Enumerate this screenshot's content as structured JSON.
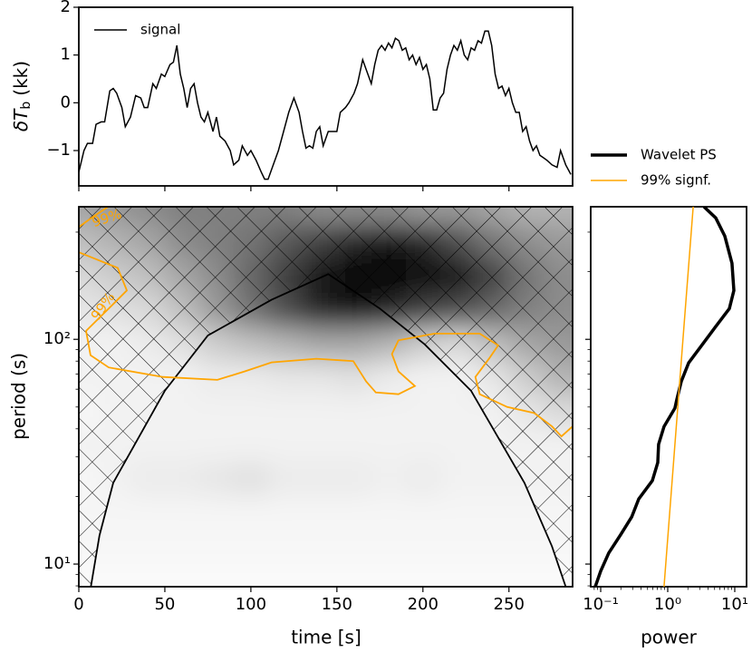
{
  "chart_data": [
    {
      "type": "line",
      "ylabel": {
        "main": "δT",
        "sub": "b",
        "unit": "(kk)"
      },
      "xlim": [
        0,
        287
      ],
      "ylim": [
        -1.74,
        2
      ],
      "xticks": [
        0,
        50,
        100,
        150,
        200,
        250
      ],
      "yticks": [
        {
          "value": -1,
          "label": "−1"
        },
        0,
        1,
        2
      ],
      "series": [
        {
          "name": "signal",
          "color": "#000000",
          "x": [
            0,
            3,
            5,
            8,
            10,
            13,
            15,
            18,
            20,
            22,
            25,
            27,
            30,
            33,
            36,
            38,
            40,
            43,
            45,
            48,
            50,
            53,
            55,
            57,
            59,
            61,
            63,
            65,
            67,
            69,
            71,
            73,
            75,
            78,
            80,
            82,
            85,
            88,
            90,
            93,
            95,
            98,
            100,
            103,
            106,
            108,
            110,
            113,
            116,
            119,
            122,
            125,
            128,
            130,
            132,
            134,
            136,
            138,
            140,
            142,
            145,
            147,
            150,
            152,
            155,
            157,
            160,
            162,
            165,
            167,
            170,
            172,
            174,
            176,
            178,
            180,
            182,
            184,
            186,
            188,
            190,
            192,
            194,
            196,
            198,
            200,
            202,
            204,
            206,
            208,
            210,
            212,
            214,
            216,
            218,
            220,
            222,
            224,
            226,
            228,
            230,
            232,
            234,
            236,
            238,
            240,
            242,
            244,
            246,
            248,
            250,
            252,
            254,
            256,
            258,
            260,
            262,
            264,
            266,
            268,
            270,
            272,
            275,
            278,
            280,
            283,
            286
          ],
          "values": [
            -1.45,
            -1.0,
            -0.85,
            -0.85,
            -0.45,
            -0.4,
            -0.4,
            0.25,
            0.3,
            0.2,
            -0.1,
            -0.5,
            -0.3,
            0.15,
            0.1,
            -0.1,
            -0.1,
            0.4,
            0.3,
            0.6,
            0.55,
            0.8,
            0.85,
            1.2,
            0.6,
            0.3,
            -0.1,
            0.3,
            0.4,
            0.0,
            -0.3,
            -0.4,
            -0.2,
            -0.6,
            -0.3,
            -0.7,
            -0.8,
            -1.0,
            -1.3,
            -1.2,
            -0.9,
            -1.1,
            -1.0,
            -1.2,
            -1.45,
            -1.6,
            -1.6,
            -1.3,
            -1.0,
            -0.6,
            -0.2,
            0.1,
            -0.2,
            -0.6,
            -0.95,
            -0.9,
            -0.95,
            -0.6,
            -0.5,
            -0.9,
            -0.6,
            -0.6,
            -0.6,
            -0.2,
            -0.1,
            0.0,
            0.2,
            0.4,
            0.9,
            0.7,
            0.4,
            0.8,
            1.1,
            1.2,
            1.1,
            1.25,
            1.15,
            1.35,
            1.3,
            1.1,
            1.15,
            0.9,
            1.0,
            0.8,
            0.95,
            0.7,
            0.8,
            0.5,
            -0.15,
            -0.15,
            0.1,
            0.2,
            0.7,
            1.0,
            1.2,
            1.1,
            1.3,
            1.0,
            0.9,
            1.15,
            1.1,
            1.3,
            1.25,
            1.5,
            1.5,
            1.2,
            0.6,
            0.3,
            0.35,
            0.15,
            0.3,
            0.0,
            -0.2,
            -0.2,
            -0.6,
            -0.5,
            -0.8,
            -1.0,
            -0.9,
            -1.1,
            -1.15,
            -1.2,
            -1.3,
            -1.35,
            -1.0,
            -1.3,
            -1.5
          ]
        }
      ]
    },
    {
      "type": "heatmap",
      "xlabel": "time [s]",
      "ylabel": "period (s)",
      "log_y": true,
      "xlim": [
        0,
        287
      ],
      "ylim": [
        7.93,
        389
      ],
      "xticks": [
        0,
        50,
        100,
        150,
        200,
        250
      ],
      "yticks": [
        {
          "value": 10,
          "label": "10¹"
        },
        {
          "value": 100,
          "label": "10²"
        }
      ],
      "yminorticks": [
        8,
        9,
        20,
        30,
        40,
        50,
        60,
        70,
        80,
        90,
        200,
        300
      ],
      "x": [
        0,
        20,
        40,
        60,
        80,
        100,
        120,
        140,
        160,
        180,
        200,
        220,
        240,
        260,
        280
      ],
      "y": [
        8.5,
        12,
        17,
        24,
        34,
        48,
        68,
        96,
        136,
        192,
        272,
        385
      ],
      "values": [
        [
          0.02,
          0.02,
          0.02,
          0.02,
          0.02,
          0.02,
          0.02,
          0.02,
          0.02,
          0.02,
          0.02,
          0.02,
          0.02,
          0.02,
          0.02
        ],
        [
          0.03,
          0.03,
          0.03,
          0.03,
          0.03,
          0.03,
          0.03,
          0.03,
          0.03,
          0.03,
          0.03,
          0.03,
          0.03,
          0.03,
          0.03
        ],
        [
          0.04,
          0.04,
          0.04,
          0.04,
          0.04,
          0.04,
          0.04,
          0.04,
          0.04,
          0.04,
          0.04,
          0.04,
          0.04,
          0.04,
          0.04
        ],
        [
          0.03,
          0.05,
          0.08,
          0.08,
          0.1,
          0.12,
          0.08,
          0.08,
          0.08,
          0.06,
          0.08,
          0.05,
          0.05,
          0.05,
          0.05
        ],
        [
          0.05,
          0.05,
          0.05,
          0.05,
          0.05,
          0.05,
          0.05,
          0.05,
          0.05,
          0.05,
          0.05,
          0.05,
          0.05,
          0.05,
          0.05
        ],
        [
          0.03,
          0.05,
          0.05,
          0.05,
          0.05,
          0.05,
          0.05,
          0.05,
          0.05,
          0.05,
          0.05,
          0.05,
          0.05,
          0.1,
          0.15
        ],
        [
          0.05,
          0.05,
          0.05,
          0.05,
          0.08,
          0.08,
          0.1,
          0.1,
          0.12,
          0.08,
          0.05,
          0.05,
          0.1,
          0.2,
          0.3
        ],
        [
          0.05,
          0.05,
          0.08,
          0.12,
          0.2,
          0.25,
          0.3,
          0.35,
          0.35,
          0.3,
          0.2,
          0.15,
          0.25,
          0.35,
          0.4
        ],
        [
          0.1,
          0.12,
          0.15,
          0.25,
          0.4,
          0.55,
          0.7,
          0.85,
          0.9,
          0.85,
          0.75,
          0.7,
          0.6,
          0.5,
          0.45
        ],
        [
          0.15,
          0.2,
          0.25,
          0.35,
          0.45,
          0.6,
          0.75,
          0.9,
          1.0,
          1.0,
          0.95,
          0.9,
          0.75,
          0.55,
          0.45
        ],
        [
          0.25,
          0.3,
          0.35,
          0.45,
          0.5,
          0.55,
          0.65,
          0.75,
          0.85,
          0.9,
          0.85,
          0.7,
          0.55,
          0.45,
          0.4
        ],
        [
          0.35,
          0.4,
          0.45,
          0.5,
          0.5,
          0.5,
          0.5,
          0.45,
          0.45,
          0.45,
          0.4,
          0.4,
          0.35,
          0.3,
          0.3
        ]
      ],
      "coi": {
        "x": [
          7,
          12,
          20,
          50,
          75,
          112,
          145,
          175,
          201,
          228,
          259,
          275,
          283
        ],
        "y": [
          7.93,
          13.4,
          23,
          59,
          104,
          150,
          195,
          137,
          95,
          59,
          23,
          12,
          7.93
        ]
      },
      "contours": [
        {
          "color": "#ffa500",
          "x": [
            0,
            8,
            17
          ],
          "y": [
            316,
            350,
            389
          ]
        },
        {
          "color": "#ffa500",
          "x": [
            0,
            22.6,
            27.9,
            17.4,
            4.2,
            6.8,
            17.4,
            48.9,
            80.5,
            96.3,
            112,
            138,
            159.5,
            167,
            172.6,
            185.8,
            195.3,
            185.8,
            182,
            185.8,
            206.8,
            233,
            243.7,
            238.4,
            230.5,
            233,
            249,
            264.7,
            275,
            280.5,
            287
          ],
          "y": [
            244,
            208,
            165,
            137,
            109,
            85,
            75,
            68,
            66,
            72,
            79,
            82,
            80,
            65,
            58,
            57,
            62,
            72,
            86,
            99,
            106,
            106,
            94,
            82,
            68,
            57,
            50,
            47,
            41,
            37,
            41
          ]
        }
      ],
      "contour_labels": [
        "99%",
        "99%"
      ]
    },
    {
      "type": "global",
      "xlabel": "power",
      "log_x": true,
      "log_y": true,
      "xlim": [
        0.071,
        15
      ],
      "ylim": [
        7.93,
        389
      ],
      "xticks": [
        {
          "value": 0.1,
          "label": "10⁻¹"
        },
        {
          "value": 1,
          "label": "10⁰"
        },
        {
          "value": 10,
          "label": "10¹"
        }
      ],
      "xminorticks": [
        0.08,
        0.09,
        0.2,
        0.3,
        0.4,
        0.5,
        0.6,
        0.7,
        0.8,
        0.9,
        2,
        3,
        4,
        5,
        6,
        7,
        8,
        9
      ],
      "yticks": [
        10,
        100
      ],
      "yminorticks": [
        8,
        9,
        20,
        30,
        40,
        50,
        60,
        70,
        80,
        90,
        200,
        300
      ],
      "series": [
        {
          "name": "Wavelet PS",
          "color": "#000000",
          "width": 3.5,
          "x": [
            3.47,
            5.2,
            7.1,
            9.1,
            9.7,
            8.3,
            5.2,
            3.26,
            2.05,
            1.6,
            1.37,
            1.28,
            0.88,
            0.73,
            0.71,
            0.59,
            0.37,
            0.29,
            0.198,
            0.132,
            0.1,
            0.083
          ],
          "y": [
            389,
            347,
            288,
            218,
            165,
            137,
            114,
            94.6,
            78.6,
            65.2,
            54.2,
            49.4,
            40.9,
            34.1,
            28.3,
            23.5,
            19.5,
            16.2,
            13.5,
            11.2,
            9.3,
            7.93
          ]
        },
        {
          "name": "99% signf.",
          "color": "#ffa500",
          "width": 1.5,
          "x": [
            2.4,
            1.69,
            0.88
          ],
          "y": [
            389,
            100,
            7.93
          ]
        }
      ]
    }
  ]
}
